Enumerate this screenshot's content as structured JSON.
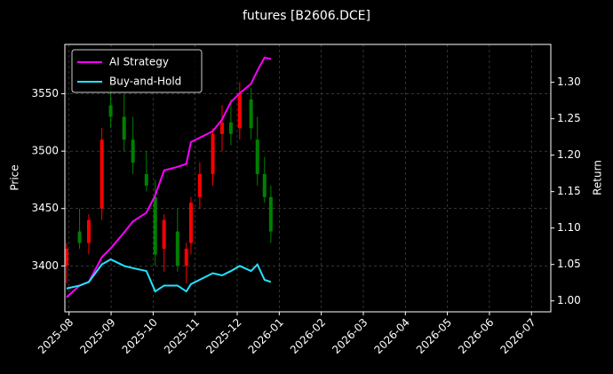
{
  "chart_data": {
    "type": "candlestick",
    "title": "futures [B2606.DCE]",
    "ylabel": "Price",
    "y2label": "Return",
    "x": [
      -0.06,
      0.25,
      0.47,
      0.78,
      0.99,
      1.31,
      1.52,
      1.84,
      2.05,
      2.26,
      2.58,
      2.79,
      2.9,
      3.11,
      3.42,
      3.64,
      3.85,
      4.06,
      4.33,
      4.48,
      4.65,
      4.8
    ],
    "open": [
      3400,
      3430,
      3420,
      3450,
      3540,
      3530,
      3510,
      3480,
      3460,
      3415,
      3430,
      3400,
      3420,
      3460,
      3480,
      3515,
      3525,
      3520,
      3545,
      3510,
      3480,
      3460
    ],
    "high": [
      3420,
      3450,
      3445,
      3520,
      3565,
      3550,
      3530,
      3500,
      3475,
      3445,
      3450,
      3420,
      3460,
      3490,
      3520,
      3540,
      3545,
      3560,
      3555,
      3530,
      3495,
      3470
    ],
    "low": [
      3385,
      3415,
      3410,
      3440,
      3520,
      3500,
      3480,
      3465,
      3400,
      3395,
      3395,
      3385,
      3410,
      3450,
      3470,
      3500,
      3505,
      3510,
      3510,
      3470,
      3455,
      3420
    ],
    "close": [
      3415,
      3420,
      3440,
      3510,
      3530,
      3510,
      3490,
      3470,
      3410,
      3440,
      3400,
      3415,
      3455,
      3480,
      3515,
      3525,
      3515,
      3550,
      3520,
      3480,
      3460,
      3430
    ],
    "up_color": "#ff0000",
    "down_color": "#008000",
    "series": [
      {
        "name": "AI Strategy",
        "color": "#ff00ff",
        "axis": "y2",
        "values": [
          1.005,
          1.021,
          1.026,
          1.06,
          1.072,
          1.094,
          1.109,
          1.121,
          1.145,
          1.179,
          1.184,
          1.188,
          1.218,
          1.224,
          1.233,
          1.249,
          1.273,
          1.285,
          1.298,
          1.316,
          1.334,
          1.332
        ]
      },
      {
        "name": "Buy-and-Hold",
        "color": "#22e5ff",
        "axis": "y2",
        "values": [
          1.017,
          1.021,
          1.026,
          1.05,
          1.057,
          1.048,
          1.045,
          1.041,
          1.013,
          1.021,
          1.021,
          1.013,
          1.023,
          1.029,
          1.038,
          1.035,
          1.041,
          1.048,
          1.041,
          1.05,
          1.029,
          1.026
        ]
      }
    ],
    "xlim": [
      -0.1,
      11.46
    ],
    "xticks": [
      {
        "value": 0,
        "label": "2025-08"
      },
      {
        "value": 1,
        "label": "2025-09"
      },
      {
        "value": 2,
        "label": "2025-10"
      },
      {
        "value": 3,
        "label": "2025-11"
      },
      {
        "value": 4,
        "label": "2025-12"
      },
      {
        "value": 5,
        "label": "2026-01"
      },
      {
        "value": 6,
        "label": "2026-02"
      },
      {
        "value": 7,
        "label": "2026-03"
      },
      {
        "value": 8,
        "label": "2026-04"
      },
      {
        "value": 9,
        "label": "2026-05"
      },
      {
        "value": 10,
        "label": "2026-06"
      },
      {
        "value": 11,
        "label": "2026-07"
      }
    ],
    "ylim": [
      3360,
      3593
    ],
    "yticks": [
      3400,
      3450,
      3500,
      3550
    ],
    "y2lim": [
      0.985,
      1.352
    ],
    "y2ticks": [
      {
        "value": 1.0,
        "label": "1.00"
      },
      {
        "value": 1.05,
        "label": "1.05"
      },
      {
        "value": 1.1,
        "label": "1.10"
      },
      {
        "value": 1.15,
        "label": "1.15"
      },
      {
        "value": 1.2,
        "label": "1.20"
      },
      {
        "value": 1.25,
        "label": "1.25"
      },
      {
        "value": 1.3,
        "label": "1.30"
      }
    ],
    "grid": true,
    "legend": "upper left"
  }
}
